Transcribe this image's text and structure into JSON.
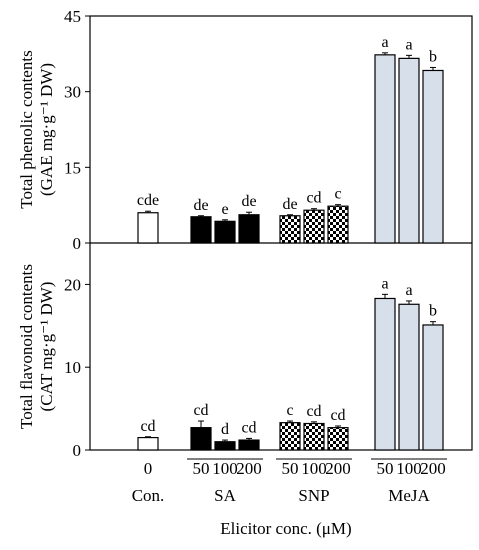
{
  "chart_data": {
    "type": "bar",
    "xlabel": "Elicitor conc. (μM)",
    "groups": [
      {
        "name": "Con.",
        "concentrations": [
          "0"
        ],
        "fill": "#ffffff"
      },
      {
        "name": "SA",
        "concentrations": [
          "50",
          "100",
          "200"
        ],
        "fill": "#000000"
      },
      {
        "name": "SNP",
        "concentrations": [
          "50",
          "100",
          "200"
        ],
        "fill": "checker"
      },
      {
        "name": "MeJA",
        "concentrations": [
          "50",
          "100",
          "200"
        ],
        "fill": "#d6dfea"
      }
    ],
    "panels": [
      {
        "ylabel_line1": "Total phenolic contents",
        "ylabel_line2": "(GAE mg·g⁻¹ DW)",
        "ylim": [
          0,
          45
        ],
        "yticks": [
          "0",
          "15",
          "30",
          "45"
        ],
        "values": [
          6.0,
          5.2,
          4.3,
          5.6,
          5.4,
          6.5,
          7.3,
          37.3,
          36.6,
          34.2
        ],
        "errors": [
          0.3,
          0.2,
          0.3,
          0.5,
          0.2,
          0.3,
          0.3,
          0.4,
          0.6,
          0.6
        ],
        "letters": [
          "cde",
          "de",
          "e",
          "de",
          "de",
          "cd",
          "c",
          "a",
          "a",
          "b"
        ]
      },
      {
        "ylabel_line1": "Total flavonoid contents",
        "ylabel_line2": "(CAT mg·g⁻¹ DW)",
        "ylim": [
          0,
          25
        ],
        "yticks": [
          "0",
          "10",
          "20"
        ],
        "values": [
          1.5,
          2.7,
          1.0,
          1.2,
          3.3,
          3.2,
          2.7,
          18.3,
          17.6,
          15.1
        ],
        "errors": [
          0.1,
          0.8,
          0.2,
          0.2,
          0.2,
          0.2,
          0.2,
          0.5,
          0.4,
          0.4
        ],
        "letters": [
          "cd",
          "cd",
          "d",
          "cd",
          "c",
          "cd",
          "cd",
          "a",
          "a",
          "b"
        ]
      }
    ]
  }
}
